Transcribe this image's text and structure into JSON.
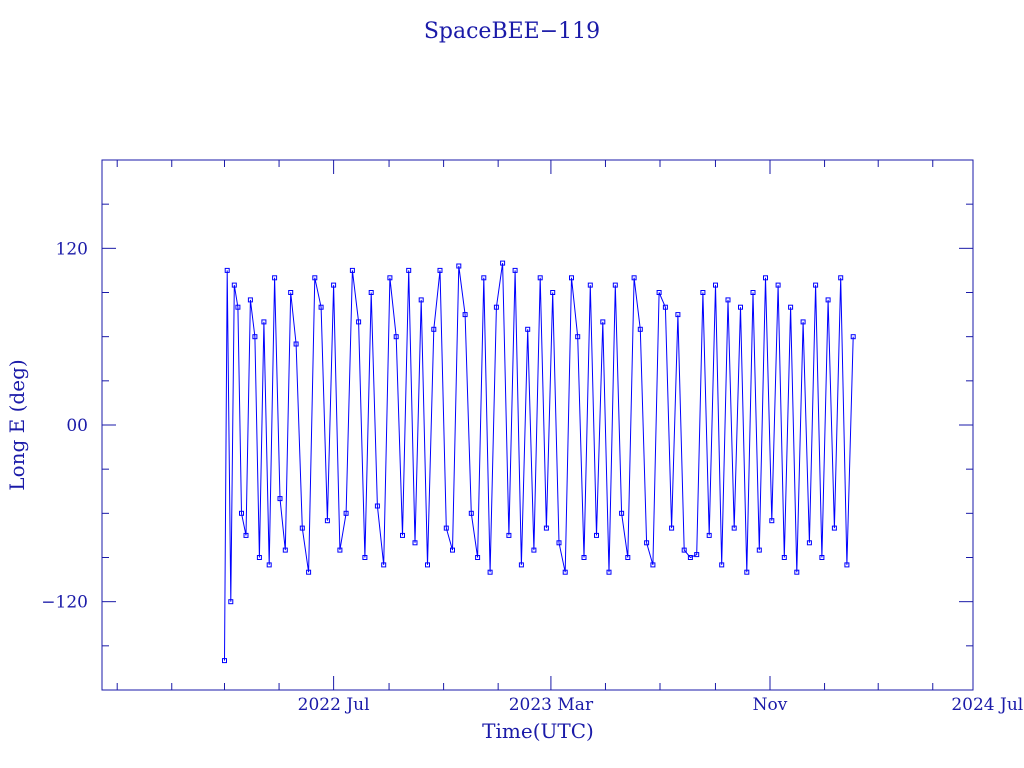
{
  "chart_data": {
    "type": "scatter",
    "title": "SpaceBEE−119",
    "xlabel": "Time(UTC)",
    "ylabel": "Long E (deg)",
    "xlim": [
      "2021-10-15",
      "2024-06-15"
    ],
    "ylim": [
      -180,
      180
    ],
    "x_ticks": [
      {
        "date": "2022-07-01",
        "label": "2022 Jul"
      },
      {
        "date": "2023-03-01",
        "label": "2023 Mar"
      },
      {
        "date": "2023-11-01",
        "label": "Nov"
      },
      {
        "date": "2024-07-01",
        "label": "2024 Jul"
      }
    ],
    "y_ticks": [
      {
        "value": 120,
        "label": "120"
      },
      {
        "value": 0,
        "label": "00"
      },
      {
        "value": -120,
        "label": "−120"
      }
    ],
    "grid": false,
    "legend": "none",
    "line_color": "#0000ff",
    "axis_color": "#1a1aa8",
    "series": [
      {
        "x": [
          "2022-03-01",
          "2022-03-04",
          "2022-03-08",
          "2022-03-12",
          "2022-03-16",
          "2022-03-20",
          "2022-03-25",
          "2022-03-30",
          "2022-04-04",
          "2022-04-09",
          "2022-04-14",
          "2022-04-20",
          "2022-04-26",
          "2022-05-02",
          "2022-05-08",
          "2022-05-14",
          "2022-05-20",
          "2022-05-27",
          "2022-06-03",
          "2022-06-10",
          "2022-06-17",
          "2022-06-24",
          "2022-07-01",
          "2022-07-08",
          "2022-07-15",
          "2022-07-22",
          "2022-07-29",
          "2022-08-05",
          "2022-08-12",
          "2022-08-19",
          "2022-08-26",
          "2022-09-02",
          "2022-09-09",
          "2022-09-16",
          "2022-09-23",
          "2022-09-30",
          "2022-10-07",
          "2022-10-14",
          "2022-10-21",
          "2022-10-28",
          "2022-11-04",
          "2022-11-11",
          "2022-11-18",
          "2022-11-25",
          "2022-12-02",
          "2022-12-09",
          "2022-12-16",
          "2022-12-23",
          "2022-12-30",
          "2023-01-06",
          "2023-01-13",
          "2023-01-20",
          "2023-01-27",
          "2023-02-03",
          "2023-02-10",
          "2023-02-17",
          "2023-02-24",
          "2023-03-03",
          "2023-03-10",
          "2023-03-17",
          "2023-03-24",
          "2023-03-31",
          "2023-04-07",
          "2023-04-14",
          "2023-04-21",
          "2023-04-28",
          "2023-05-05",
          "2023-05-12",
          "2023-05-19",
          "2023-05-26",
          "2023-06-02",
          "2023-06-09",
          "2023-06-16",
          "2023-06-23",
          "2023-06-30",
          "2023-07-07",
          "2023-07-14",
          "2023-07-21",
          "2023-07-28",
          "2023-08-04",
          "2023-08-11",
          "2023-08-18",
          "2023-08-25",
          "2023-09-01",
          "2023-09-08",
          "2023-09-15",
          "2023-09-22",
          "2023-09-29",
          "2023-10-06",
          "2023-10-13",
          "2023-10-20",
          "2023-10-27",
          "2023-11-03",
          "2023-11-10",
          "2023-11-17",
          "2023-11-24",
          "2023-12-01",
          "2023-12-08",
          "2023-12-15",
          "2023-12-22",
          "2023-12-29",
          "2024-01-05",
          "2024-01-12",
          "2024-01-19",
          "2024-01-26",
          "2024-02-02"
        ],
        "y": [
          -160,
          105,
          -120,
          95,
          80,
          -60,
          -75,
          85,
          60,
          -90,
          70,
          -95,
          100,
          -50,
          -85,
          90,
          55,
          -70,
          -100,
          100,
          80,
          -65,
          95,
          -85,
          -60,
          105,
          70,
          -90,
          90,
          -55,
          -95,
          100,
          60,
          -75,
          105,
          -80,
          85,
          -95,
          65,
          105,
          -70,
          -85,
          108,
          75,
          -60,
          -90,
          100,
          -100,
          80,
          110,
          -75,
          105,
          -95,
          65,
          -85,
          100,
          -70,
          90,
          -80,
          -100,
          100,
          60,
          -90,
          95,
          -75,
          70,
          -100,
          95,
          -60,
          -90,
          100,
          65,
          -80,
          -95,
          90,
          80,
          -70,
          75,
          -85,
          -90,
          -88,
          90,
          -75,
          95,
          -95,
          85,
          -70,
          80,
          -100,
          90,
          -85,
          100,
          -65,
          95,
          -90,
          80,
          -100,
          70,
          -80,
          95,
          -90,
          85,
          -70,
          100,
          -95,
          60
        ]
      }
    ]
  }
}
